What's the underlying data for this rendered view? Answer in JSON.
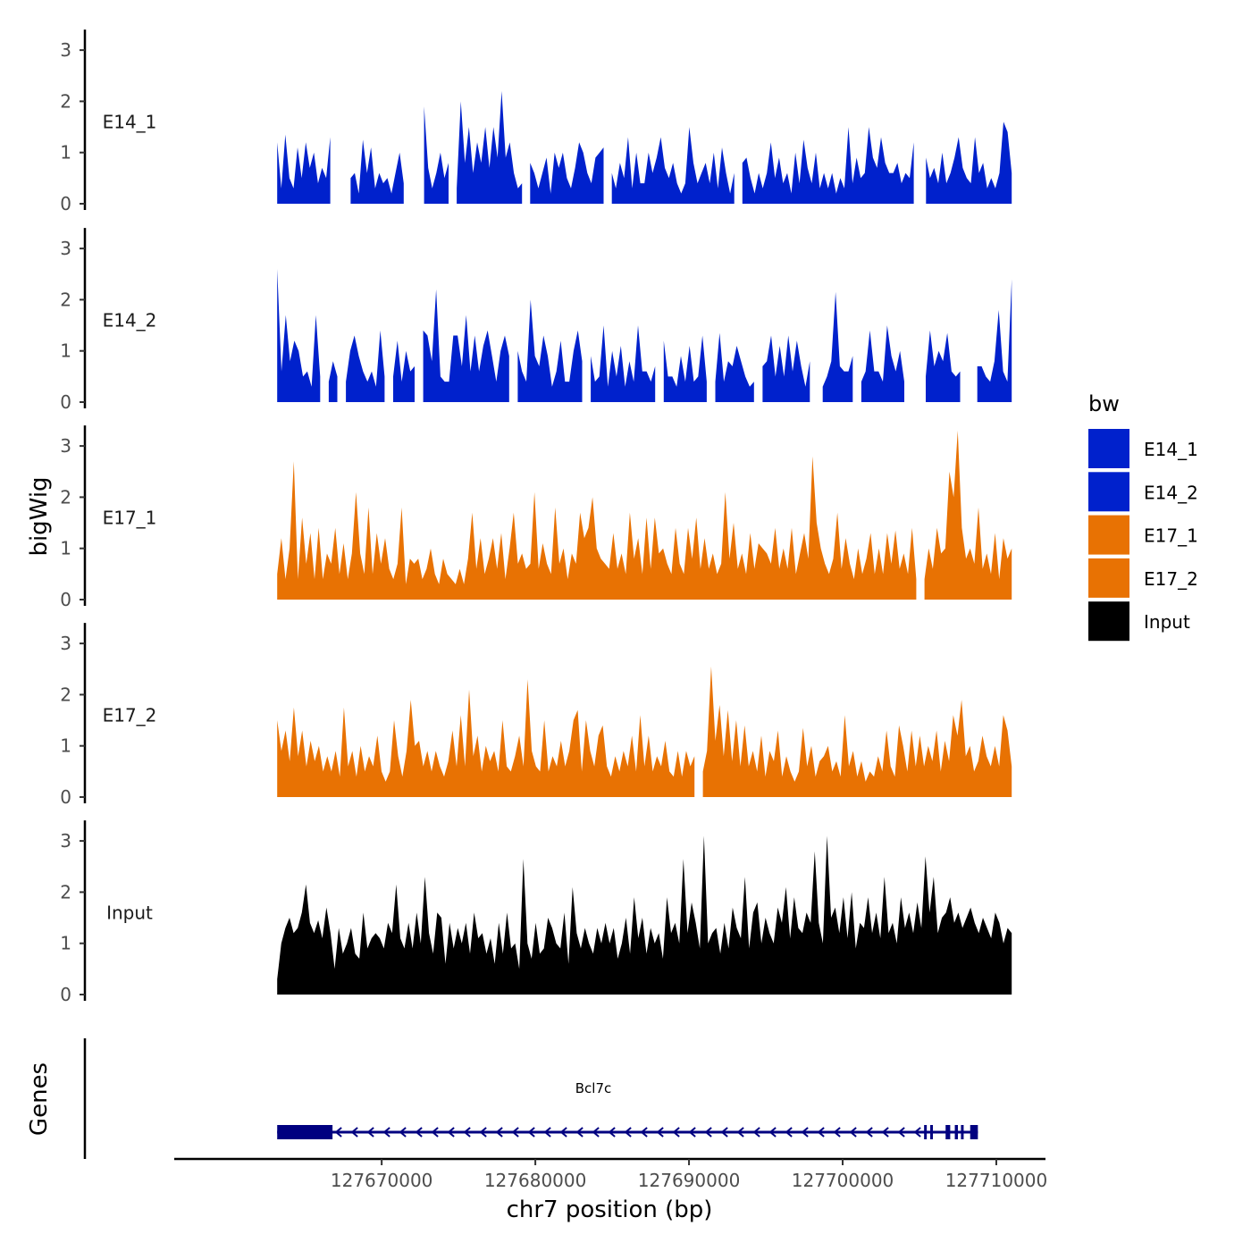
{
  "chart_data": {
    "type": "area",
    "chromosome": "chr7",
    "x_range": [
      127663200,
      127711000
    ],
    "xlim": [
      127656500,
      127713200
    ],
    "x_ticks": [
      127670000,
      127680000,
      127690000,
      127700000,
      127710000
    ],
    "x_tick_labels": [
      "127670000",
      "127680000",
      "127690000",
      "127700000",
      "127710000"
    ],
    "xlabel": "chr7 position (bp)",
    "ylabel": "bigWig",
    "ylim": [
      0,
      3.4
    ],
    "y_ticks": [
      0,
      1,
      2,
      3
    ],
    "y_tick_labels": [
      "0",
      "1",
      "2",
      "3"
    ],
    "legend_title": "bw",
    "legend_position": "right",
    "series": [
      {
        "name": "E14_1",
        "color": "#0021CC",
        "peaks": [
          1.2,
          0.3,
          1.35,
          0.5,
          0.3,
          1.1,
          0.5,
          1.2,
          0.7,
          1.0,
          0.4,
          0.7,
          0.5,
          1.3,
          0.4,
          0.9,
          0.3,
          1.15,
          0.5,
          0.6,
          0.2,
          1.25,
          0.6,
          1.1,
          0.3,
          0.6,
          0.4,
          0.5,
          0.2,
          0.6,
          1.0,
          0.4,
          1.7,
          0.9,
          0.6,
          0.5,
          1.9,
          0.7,
          0.3,
          0.6,
          1.0,
          0.5,
          0.8,
          1.1,
          0.3,
          2.0,
          0.8,
          1.5,
          0.6,
          1.2,
          0.8,
          1.5,
          0.7,
          1.5,
          0.9,
          2.2,
          0.9,
          1.2,
          0.6,
          0.3,
          0.4,
          0.2,
          0.8,
          0.6,
          0.3,
          0.6,
          0.9,
          0.2,
          1.0,
          0.7,
          1.0,
          0.5,
          0.3,
          0.7,
          1.2,
          1.0,
          0.6,
          0.4,
          0.9,
          1.0,
          1.1,
          0.2,
          0.6,
          0.3,
          0.8,
          0.5,
          1.3,
          0.3,
          1.0,
          0.4,
          0.4,
          1.0,
          0.6,
          0.9,
          1.3,
          0.7,
          0.5,
          0.8,
          0.4,
          0.2,
          0.4,
          1.5,
          0.8,
          0.4,
          0.6,
          0.8,
          0.4,
          1.0,
          0.3,
          1.1,
          0.6,
          0.2,
          0.6,
          0.3,
          0.8,
          0.9,
          0.5,
          0.2,
          0.6,
          0.3,
          0.6,
          1.2,
          0.5,
          0.9,
          0.4,
          0.6,
          0.2,
          1.0,
          0.4,
          1.25,
          0.7,
          0.4,
          1.0,
          0.3,
          0.6,
          0.3,
          0.6,
          0.2,
          0.5,
          0.3,
          1.5,
          0.4,
          0.9,
          0.5,
          0.6,
          1.5,
          0.9,
          0.7,
          1.3,
          0.8,
          0.6,
          0.6,
          0.8,
          0.4,
          0.6,
          0.5,
          1.2,
          0.6,
          0.3,
          0.9,
          0.5,
          0.7,
          0.4,
          1.0,
          0.4,
          0.6,
          0.9,
          1.3,
          0.7,
          0.5,
          0.4,
          1.3,
          0.6,
          0.8,
          0.3,
          0.5,
          0.3,
          0.6,
          1.6,
          1.4,
          0.6
        ],
        "gaps": [
          [
            127666800,
            127667900
          ],
          [
            127671600,
            127672700
          ],
          [
            127674400,
            127674700
          ],
          [
            127679300,
            127679500
          ],
          [
            127684600,
            127684800
          ],
          [
            127693200,
            127693400
          ],
          [
            127704700,
            127705300
          ],
          [
            127707100,
            127707200
          ]
        ]
      },
      {
        "name": "E14_2",
        "color": "#0021CC",
        "peaks": [
          2.6,
          0.6,
          1.7,
          0.8,
          1.2,
          1.0,
          0.5,
          0.6,
          0.3,
          1.7,
          0.5,
          0.3,
          0.4,
          0.8,
          0.5,
          0.3,
          0.4,
          1.0,
          1.3,
          0.9,
          0.6,
          0.4,
          0.6,
          0.3,
          1.4,
          0.5,
          0.8,
          0.5,
          1.2,
          0.4,
          1.0,
          0.6,
          0.7,
          0.4,
          1.4,
          1.3,
          0.8,
          2.2,
          0.5,
          0.4,
          0.4,
          1.3,
          1.3,
          0.7,
          1.7,
          0.6,
          1.3,
          0.6,
          1.1,
          1.4,
          0.9,
          0.4,
          1.0,
          1.3,
          0.9,
          0.8,
          1.0,
          0.6,
          0.4,
          2.0,
          0.9,
          0.7,
          1.3,
          0.9,
          0.3,
          0.6,
          1.2,
          0.4,
          0.4,
          1.0,
          1.4,
          0.8,
          1.35,
          0.9,
          0.4,
          0.5,
          1.5,
          0.3,
          1.0,
          0.5,
          1.1,
          0.3,
          0.8,
          0.4,
          1.5,
          0.6,
          0.6,
          0.4,
          0.7,
          0.4,
          1.2,
          0.5,
          0.5,
          0.3,
          0.9,
          0.4,
          1.1,
          0.4,
          0.5,
          1.3,
          0.4,
          0.6,
          0.4,
          1.35,
          0.4,
          0.8,
          0.7,
          1.1,
          0.8,
          0.5,
          0.3,
          0.4,
          0.3,
          0.7,
          0.8,
          1.3,
          0.5,
          1.1,
          0.5,
          1.3,
          0.6,
          1.2,
          0.7,
          0.3,
          0.8,
          0.5,
          0.9,
          0.3,
          0.5,
          0.8,
          2.15,
          0.7,
          0.6,
          0.6,
          0.9,
          0.5,
          0.4,
          0.6,
          1.4,
          0.6,
          0.6,
          0.4,
          1.5,
          0.9,
          0.6,
          1.0,
          0.4,
          0.3,
          1.0,
          0.8,
          0.6,
          0.5,
          1.4,
          0.7,
          1.0,
          0.8,
          1.35,
          0.6,
          0.5,
          0.6,
          1.5,
          0.9,
          0.6,
          0.7,
          0.7,
          0.5,
          0.4,
          0.8,
          1.8,
          0.6,
          0.4,
          2.4
        ],
        "gaps": [
          [
            127666100,
            127666400
          ],
          [
            127667300,
            127667600
          ],
          [
            127670200,
            127670500
          ],
          [
            127672400,
            127672700
          ],
          [
            127678500,
            127678800
          ],
          [
            127683200,
            127683500
          ],
          [
            127687900,
            127688200
          ],
          [
            127691400,
            127691700
          ],
          [
            127694300,
            127694600
          ],
          [
            127698100,
            127698500
          ],
          [
            127700900,
            127701200
          ],
          [
            127704200,
            127704600
          ],
          [
            127705100,
            127705400
          ],
          [
            127707900,
            127708700
          ]
        ]
      },
      {
        "name": "E17_1",
        "color": "#E87203",
        "peaks": [
          0.5,
          1.2,
          0.4,
          1.0,
          2.7,
          0.4,
          1.6,
          0.7,
          1.3,
          0.4,
          1.4,
          0.4,
          0.9,
          0.7,
          1.4,
          0.5,
          1.1,
          0.4,
          0.9,
          2.1,
          0.9,
          0.5,
          1.8,
          0.5,
          1.3,
          0.7,
          1.2,
          0.6,
          0.4,
          0.7,
          1.8,
          0.3,
          0.8,
          0.7,
          0.8,
          0.4,
          0.6,
          1.0,
          0.5,
          0.3,
          0.8,
          0.5,
          0.4,
          0.3,
          0.6,
          0.3,
          0.8,
          1.7,
          0.6,
          1.2,
          0.5,
          0.8,
          1.2,
          0.6,
          1.3,
          0.4,
          1.0,
          1.7,
          0.7,
          0.9,
          0.6,
          0.7,
          2.1,
          0.6,
          1.1,
          0.7,
          0.5,
          1.8,
          0.7,
          1.0,
          0.4,
          0.9,
          0.7,
          1.7,
          1.2,
          1.4,
          2.0,
          1.0,
          0.8,
          0.7,
          0.6,
          1.3,
          0.6,
          0.9,
          0.5,
          1.7,
          0.8,
          1.2,
          0.5,
          1.6,
          0.6,
          1.6,
          0.9,
          1.0,
          0.7,
          0.5,
          1.4,
          0.7,
          0.5,
          1.4,
          0.8,
          1.6,
          0.6,
          1.2,
          0.6,
          0.9,
          0.5,
          0.7,
          2.1,
          0.8,
          1.5,
          0.6,
          0.9,
          0.5,
          1.3,
          0.6,
          1.1,
          1.0,
          0.9,
          0.7,
          1.4,
          0.6,
          1.0,
          0.6,
          1.4,
          0.5,
          0.9,
          1.3,
          0.8,
          2.8,
          1.5,
          1.0,
          0.7,
          0.5,
          0.8,
          1.7,
          0.6,
          1.2,
          0.7,
          0.4,
          1.0,
          0.5,
          0.8,
          1.3,
          0.5,
          1.0,
          0.5,
          1.3,
          0.7,
          1.35,
          0.6,
          0.9,
          0.5,
          1.4,
          0.4,
          1.2,
          0.4,
          1.0,
          0.6,
          1.4,
          0.9,
          1.0,
          2.5,
          2.0,
          3.3,
          1.4,
          0.8,
          1.0,
          0.7,
          1.8,
          0.6,
          0.9,
          0.5,
          1.3,
          0.4,
          1.2,
          0.8,
          1.0
        ],
        "gaps": [
          [
            127704800,
            127705100
          ]
        ]
      },
      {
        "name": "E17_2",
        "color": "#E87203",
        "peaks": [
          1.5,
          0.9,
          1.3,
          0.7,
          1.75,
          0.8,
          1.3,
          0.6,
          1.1,
          0.7,
          1.0,
          0.5,
          0.8,
          0.5,
          0.9,
          0.4,
          1.75,
          0.6,
          0.9,
          0.4,
          1.0,
          0.5,
          0.8,
          0.6,
          1.2,
          0.5,
          0.3,
          0.5,
          1.5,
          0.8,
          0.4,
          0.9,
          1.9,
          1.0,
          1.1,
          0.6,
          0.9,
          0.5,
          0.9,
          0.6,
          0.4,
          0.7,
          1.3,
          0.6,
          1.6,
          0.6,
          2.1,
          0.8,
          1.2,
          0.5,
          1.0,
          0.7,
          0.9,
          0.5,
          1.5,
          0.6,
          0.5,
          0.8,
          1.2,
          0.6,
          2.3,
          0.9,
          0.6,
          0.5,
          1.5,
          0.5,
          0.8,
          0.6,
          1.1,
          0.6,
          0.9,
          1.5,
          1.7,
          0.5,
          1.5,
          0.9,
          0.6,
          1.2,
          1.4,
          0.6,
          0.4,
          0.8,
          0.5,
          0.9,
          0.6,
          1.2,
          0.5,
          1.6,
          0.6,
          1.2,
          0.5,
          0.8,
          0.6,
          1.1,
          0.5,
          0.4,
          0.9,
          0.4,
          0.9,
          0.6,
          0.8,
          1.0,
          0.5,
          0.9,
          2.55,
          1.1,
          1.8,
          0.8,
          1.7,
          0.7,
          1.5,
          0.6,
          1.4,
          0.6,
          0.9,
          0.5,
          1.2,
          0.4,
          0.9,
          0.7,
          1.3,
          0.4,
          0.8,
          0.5,
          0.3,
          0.5,
          1.35,
          0.6,
          1.0,
          0.4,
          0.7,
          0.8,
          1.0,
          0.5,
          0.7,
          0.4,
          1.6,
          0.6,
          0.9,
          0.4,
          0.7,
          0.3,
          0.5,
          0.4,
          0.8,
          0.5,
          1.3,
          0.6,
          0.4,
          1.4,
          1.0,
          0.5,
          1.3,
          0.6,
          1.2,
          0.6,
          1.0,
          0.7,
          1.3,
          0.5,
          1.1,
          0.7,
          1.6,
          1.2,
          1.9,
          0.8,
          1.0,
          0.5,
          0.7,
          1.2,
          0.8,
          0.6,
          1.0,
          0.6,
          1.6,
          1.3,
          0.6
        ],
        "gaps": [
          [
            127674100,
            127674300
          ],
          [
            127690500,
            127690800
          ]
        ]
      },
      {
        "name": "Input",
        "color": "#000000",
        "peaks": [
          0.3,
          1.0,
          1.3,
          1.5,
          1.2,
          1.3,
          1.6,
          2.15,
          1.4,
          1.2,
          1.45,
          1.1,
          1.7,
          1.2,
          0.5,
          1.3,
          0.8,
          1.0,
          1.3,
          0.8,
          0.7,
          1.6,
          0.9,
          1.1,
          1.2,
          1.1,
          0.9,
          1.4,
          1.2,
          2.15,
          1.1,
          0.9,
          1.4,
          0.9,
          1.6,
          1.0,
          2.3,
          1.2,
          0.8,
          1.6,
          1.5,
          0.6,
          1.4,
          0.9,
          1.3,
          1.0,
          1.4,
          0.8,
          1.6,
          1.1,
          1.2,
          0.8,
          1.1,
          0.6,
          1.4,
          0.8,
          1.6,
          0.9,
          1.0,
          0.5,
          2.65,
          1.0,
          0.7,
          1.4,
          0.8,
          0.9,
          1.5,
          1.3,
          1.0,
          0.9,
          1.6,
          0.6,
          2.1,
          1.2,
          0.9,
          1.3,
          1.0,
          0.8,
          1.3,
          1.0,
          1.4,
          1.0,
          1.3,
          0.7,
          1.0,
          1.5,
          0.8,
          1.9,
          1.1,
          1.5,
          0.8,
          1.3,
          1.0,
          1.2,
          0.7,
          1.9,
          1.2,
          1.4,
          1.0,
          2.65,
          1.2,
          1.8,
          1.4,
          0.9,
          3.1,
          1.0,
          1.2,
          1.3,
          0.8,
          1.4,
          0.9,
          1.7,
          1.3,
          1.1,
          2.3,
          0.9,
          1.6,
          1.8,
          1.0,
          1.5,
          1.2,
          1.0,
          1.7,
          1.4,
          2.1,
          1.1,
          1.9,
          1.3,
          1.2,
          1.6,
          1.4,
          2.8,
          1.4,
          1.0,
          3.1,
          1.5,
          1.7,
          1.2,
          1.9,
          1.1,
          2.0,
          0.9,
          1.4,
          1.3,
          1.9,
          1.2,
          1.6,
          1.1,
          2.3,
          1.2,
          1.4,
          1.0,
          1.9,
          1.3,
          1.6,
          1.2,
          1.8,
          1.3,
          2.7,
          1.6,
          2.3,
          1.2,
          1.5,
          1.6,
          1.9,
          1.4,
          1.6,
          1.3,
          1.5,
          1.7,
          1.4,
          1.2,
          1.5,
          1.3,
          1.1,
          1.6,
          1.4,
          1.0,
          1.3,
          1.2
        ],
        "gaps": []
      }
    ],
    "genes": {
      "track_label": "Genes",
      "name": "Bcl7c",
      "strand": "-",
      "color": "#000080",
      "start": 127663200,
      "end": 127708800,
      "exons": [
        [
          127663200,
          127666800
        ],
        [
          127705300,
          127705400
        ],
        [
          127705700,
          127705800
        ],
        [
          127706700,
          127707000
        ],
        [
          127707300,
          127707500
        ],
        [
          127707700,
          127707800
        ],
        [
          127708300,
          127708800
        ]
      ]
    }
  }
}
